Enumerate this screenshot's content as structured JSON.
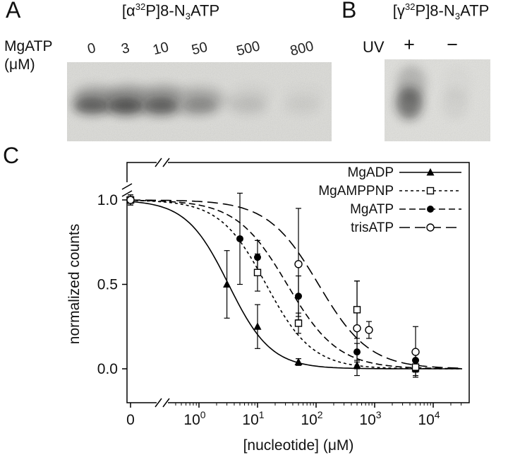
{
  "panelA": {
    "label": "A",
    "title": {
      "pre": "[α",
      "sup": "32",
      "mid": "P]8-N",
      "sub": "3",
      "post": "ATP"
    },
    "row_label": "MgATP",
    "row_units": "(μM)",
    "lanes": [
      {
        "label": "0",
        "intensity": 0.55
      },
      {
        "label": "3",
        "intensity": 0.62
      },
      {
        "label": "10",
        "intensity": 0.55
      },
      {
        "label": "50",
        "intensity": 0.3
      },
      {
        "label": "500",
        "intensity": 0.12
      },
      {
        "label": "800",
        "intensity": 0.06
      }
    ]
  },
  "panelB": {
    "label": "B",
    "title": {
      "pre": "[γ",
      "sup": "32",
      "mid": "P]8-N",
      "sub": "3",
      "post": "ATP"
    },
    "row_label": "UV",
    "lanes": [
      {
        "label": "+",
        "intensity": 0.5
      },
      {
        "label": "−",
        "intensity": 0.05
      }
    ]
  },
  "panelC": {
    "label": "C"
  },
  "chart_data": {
    "type": "scatter",
    "title": "",
    "xlabel": "[nucleotide] (μM)",
    "ylabel": "normalized counts",
    "x_scale": "log",
    "x_zero_label": "0",
    "x_tick_exponents": [
      0,
      1,
      2,
      3,
      4
    ],
    "y_ticks": [
      0.0,
      0.5,
      1.0
    ],
    "ylim": [
      -0.08,
      1.25
    ],
    "xlim_log": [
      1,
      10000
    ],
    "grid": false,
    "axis_break": {
      "x": true,
      "y": true
    },
    "legend_position": "top-right",
    "series": [
      {
        "name": "MgADP",
        "marker": "filled-triangle",
        "line": "solid",
        "fit": {
          "ic50": 3.2,
          "hill": 1.2
        },
        "points": [
          {
            "x": 0,
            "y": 1.0,
            "err": 0.02
          },
          {
            "x": 3,
            "y": 0.5,
            "err": 0.2
          },
          {
            "x": 10,
            "y": 0.25,
            "err": 0.13
          },
          {
            "x": 50,
            "y": 0.04,
            "err": 0.02
          },
          {
            "x": 500,
            "y": 0.02,
            "err": 0.02
          },
          {
            "x": 5000,
            "y": 0.0,
            "err": 0.04
          }
        ]
      },
      {
        "name": "MgAMPPNP",
        "marker": "open-square",
        "line": "dash-short",
        "fit": {
          "ic50": 14,
          "hill": 1.1
        },
        "points": [
          {
            "x": 0,
            "y": 1.0,
            "err": 0.02
          },
          {
            "x": 10,
            "y": 0.57,
            "err": 0.11
          },
          {
            "x": 50,
            "y": 0.27,
            "err": 0.06
          },
          {
            "x": 500,
            "y": 0.35,
            "err": 0.17
          },
          {
            "x": 5000,
            "y": 0.01,
            "err": 0.03
          }
        ]
      },
      {
        "name": "MgATP",
        "marker": "filled-circle",
        "line": "dash-medium",
        "fit": {
          "ic50": 32,
          "hill": 1.0
        },
        "points": [
          {
            "x": 0,
            "y": 1.0,
            "err": 0.03
          },
          {
            "x": 5,
            "y": 0.77,
            "err": 0.27
          },
          {
            "x": 10,
            "y": 0.66,
            "err": 0.1
          },
          {
            "x": 50,
            "y": 0.43,
            "err": 0.12
          },
          {
            "x": 500,
            "y": 0.1,
            "err": 0.05
          },
          {
            "x": 5000,
            "y": 0.05,
            "err": 0.04
          }
        ]
      },
      {
        "name": "trisATP",
        "marker": "open-circle",
        "line": "dash-long",
        "fit": {
          "ic50": 110,
          "hill": 1.0
        },
        "points": [
          {
            "x": 0,
            "y": 1.0,
            "err": 0.03
          },
          {
            "x": 50,
            "y": 0.62,
            "err": 0.33
          },
          {
            "x": 500,
            "y": 0.24,
            "err": 0.28
          },
          {
            "x": 800,
            "y": 0.23,
            "err": 0.05
          },
          {
            "x": 5000,
            "y": 0.1,
            "err": 0.15
          }
        ]
      }
    ]
  }
}
